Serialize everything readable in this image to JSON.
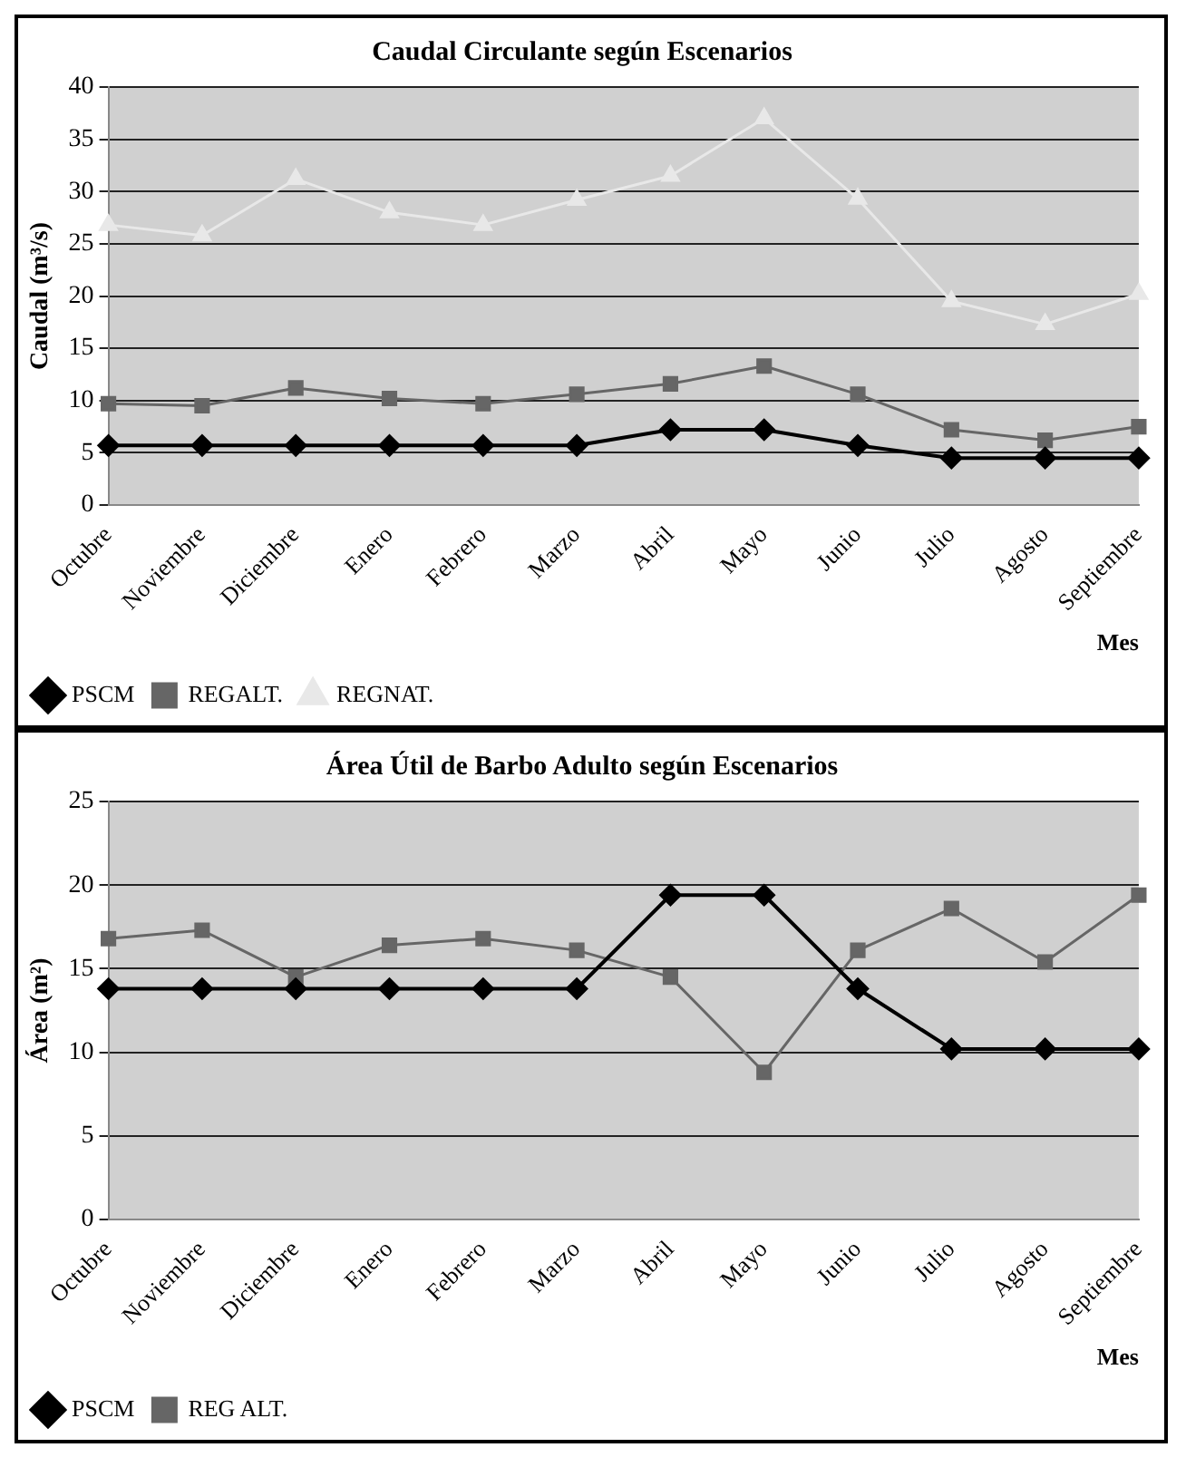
{
  "chart_data": [
    {
      "type": "line",
      "title": "Caudal Circulante según Escenarios",
      "xlabel": "Mes",
      "ylabel": "Caudal (m³/s)",
      "categories": [
        "Octubre",
        "Noviembre",
        "Diciembre",
        "Enero",
        "Febrero",
        "Marzo",
        "Abril",
        "Mayo",
        "Junio",
        "Julio",
        "Agosto",
        "Septiembre"
      ],
      "series": [
        {
          "name": "PSCM",
          "color": "#000000",
          "marker": "diamond",
          "values": [
            5.7,
            5.7,
            5.7,
            5.7,
            5.7,
            5.7,
            7.2,
            7.2,
            5.7,
            4.5,
            4.5,
            4.5
          ]
        },
        {
          "name": "REGALT.",
          "color": "#666666",
          "marker": "square",
          "values": [
            9.7,
            9.5,
            11.2,
            10.2,
            9.7,
            10.6,
            11.6,
            13.3,
            10.6,
            7.2,
            6.2,
            7.5
          ]
        },
        {
          "name": "REGNAT.",
          "color": "#e8e8e8",
          "marker": "triangle",
          "values": [
            26.8,
            25.8,
            31.2,
            28,
            26.8,
            29.2,
            31.5,
            37,
            29.3,
            19.5,
            17.3,
            20.2
          ]
        }
      ],
      "ylim": [
        0,
        40
      ],
      "yticks": [
        0,
        5,
        10,
        15,
        20,
        25,
        30,
        35,
        40
      ],
      "grid": "y",
      "legend": "bottom left",
      "line_style": "solid"
    },
    {
      "type": "line",
      "title": "Área Útil de Barbo Adulto según Escenarios",
      "xlabel": "Mes",
      "ylabel": "Área (m²)",
      "categories": [
        "Octubre",
        "Noviembre",
        "Diciembre",
        "Enero",
        "Febrero",
        "Marzo",
        "Abril",
        "Mayo",
        "Junio",
        "Julio",
        "Agosto",
        "Septiembre"
      ],
      "series": [
        {
          "name": "PSCM",
          "color": "#000000",
          "marker": "diamond",
          "values": [
            13.8,
            13.8,
            13.8,
            13.8,
            13.8,
            13.8,
            19.4,
            19.4,
            13.8,
            10.2,
            10.2,
            10.2
          ]
        },
        {
          "name": "REG ALT.",
          "color": "#666666",
          "marker": "square",
          "values": [
            16.8,
            17.3,
            14.5,
            16.4,
            16.8,
            16.1,
            14.5,
            8.8,
            16.1,
            18.6,
            15.4,
            19.4
          ]
        }
      ],
      "ylim": [
        0,
        25
      ],
      "yticks": [
        0,
        5,
        10,
        15,
        20,
        25
      ],
      "grid": "y",
      "legend": "bottom left",
      "line_style": "solid"
    }
  ]
}
